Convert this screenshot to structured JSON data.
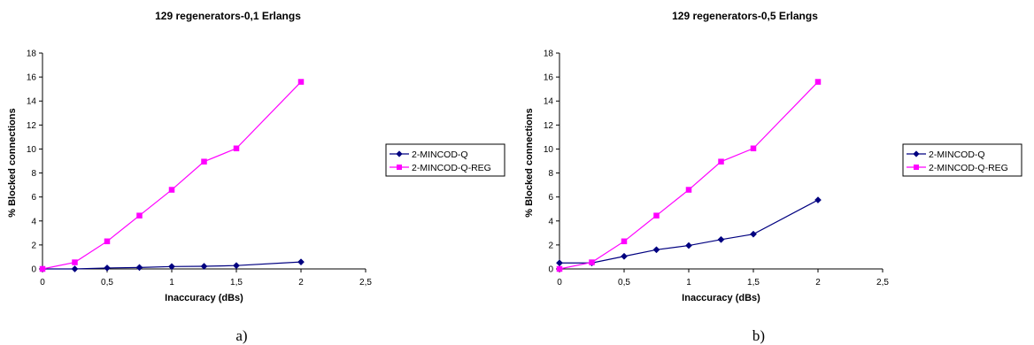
{
  "chart_data": [
    {
      "type": "line",
      "title": "129 regenerators-0,1 Erlangs",
      "xlabel": "Inaccuracy (dBs)",
      "ylabel": "% Blocked connections",
      "xlim": [
        0,
        2.5
      ],
      "ylim": [
        0,
        18
      ],
      "x_ticks": [
        "0",
        "0,5",
        "1",
        "1,5",
        "2",
        "2,5"
      ],
      "y_ticks": [
        "0",
        "2",
        "4",
        "6",
        "8",
        "10",
        "12",
        "14",
        "16",
        "18"
      ],
      "grid": false,
      "legend_position": "right",
      "caption": "a)",
      "series": [
        {
          "name": "2-MINCOD-Q",
          "color": "#000080",
          "marker": "diamond",
          "x": [
            0,
            0.25,
            0.5,
            0.75,
            1,
            1.25,
            1.5,
            2
          ],
          "y": [
            0,
            0,
            0.08,
            0.12,
            0.2,
            0.22,
            0.28,
            0.58
          ]
        },
        {
          "name": "2-MINCOD-Q-REG",
          "color": "#ff00ff",
          "marker": "square",
          "x": [
            0,
            0.25,
            0.5,
            0.75,
            1,
            1.25,
            1.5,
            2
          ],
          "y": [
            0,
            0.55,
            2.3,
            4.45,
            6.6,
            8.95,
            10.05,
            15.6
          ]
        }
      ]
    },
    {
      "type": "line",
      "title": "129 regenerators-0,5 Erlangs",
      "xlabel": "Inaccuracy (dBs)",
      "ylabel": "% Blocked connections",
      "xlim": [
        0,
        2.5
      ],
      "ylim": [
        0,
        18
      ],
      "x_ticks": [
        "0",
        "0,5",
        "1",
        "1,5",
        "2",
        "2,5"
      ],
      "y_ticks": [
        "0",
        "2",
        "4",
        "6",
        "8",
        "10",
        "12",
        "14",
        "16",
        "18"
      ],
      "grid": false,
      "legend_position": "right",
      "caption": "b)",
      "series": [
        {
          "name": "2-MINCOD-Q",
          "color": "#000080",
          "marker": "diamond",
          "x": [
            0,
            0.25,
            0.5,
            0.75,
            1,
            1.25,
            1.5,
            2
          ],
          "y": [
            0.5,
            0.5,
            1.05,
            1.6,
            1.95,
            2.45,
            2.9,
            5.75
          ]
        },
        {
          "name": "2-MINCOD-Q-REG",
          "color": "#ff00ff",
          "marker": "square",
          "x": [
            0,
            0.25,
            0.5,
            0.75,
            1,
            1.25,
            1.5,
            2
          ],
          "y": [
            0,
            0.55,
            2.3,
            4.45,
            6.6,
            8.95,
            10.05,
            15.6
          ]
        }
      ]
    }
  ]
}
